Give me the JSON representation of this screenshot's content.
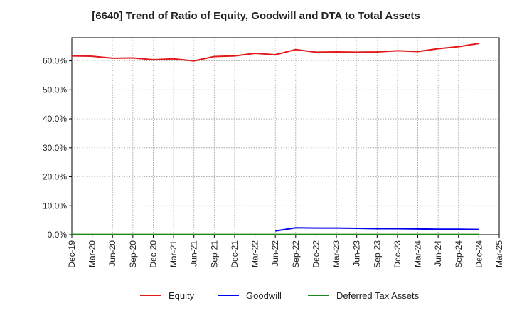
{
  "chart_data": {
    "type": "line",
    "title": "[6640]  Trend of Ratio of Equity, Goodwill and DTA to Total Assets",
    "xlabel": "",
    "ylabel": "",
    "ylim": [
      0,
      0.68
    ],
    "y_ticks": [
      "0.0%",
      "10.0%",
      "20.0%",
      "30.0%",
      "40.0%",
      "50.0%",
      "60.0%"
    ],
    "y_tick_values": [
      0,
      0.1,
      0.2,
      0.3,
      0.4,
      0.5,
      0.6
    ],
    "categories": [
      "Dec-19",
      "Mar-20",
      "Jun-20",
      "Sep-20",
      "Dec-20",
      "Mar-21",
      "Jun-21",
      "Sep-21",
      "Dec-21",
      "Mar-22",
      "Jun-22",
      "Sep-22",
      "Dec-22",
      "Mar-23",
      "Jun-23",
      "Sep-23",
      "Dec-23",
      "Mar-24",
      "Jun-24",
      "Sep-24",
      "Dec-24",
      "Mar-25"
    ],
    "grid": true,
    "legend_position": "bottom",
    "series": [
      {
        "name": "Equity",
        "color": "#e31a1c",
        "values": [
          0.617,
          0.616,
          0.609,
          0.61,
          0.604,
          0.607,
          0.6,
          0.615,
          0.617,
          0.626,
          0.621,
          0.639,
          0.63,
          0.631,
          0.63,
          0.631,
          0.635,
          0.632,
          0.642,
          0.649,
          0.66,
          null
        ]
      },
      {
        "name": "Goodwill",
        "color": "#0000ee",
        "values": [
          null,
          null,
          null,
          null,
          null,
          null,
          null,
          null,
          null,
          null,
          0.013,
          0.024,
          0.023,
          0.023,
          0.022,
          0.021,
          0.021,
          0.02,
          0.019,
          0.019,
          0.018,
          null
        ]
      },
      {
        "name": "Deferred Tax Assets",
        "color": "#1a8a1a",
        "values": [
          0.001,
          0.001,
          0.001,
          0.001,
          0.001,
          0.001,
          0.001,
          0.001,
          0.001,
          0.001,
          0.001,
          0.001,
          0.001,
          0.001,
          0.001,
          0.001,
          0.001,
          0.001,
          0.001,
          0.001,
          0.001,
          null
        ]
      }
    ]
  }
}
